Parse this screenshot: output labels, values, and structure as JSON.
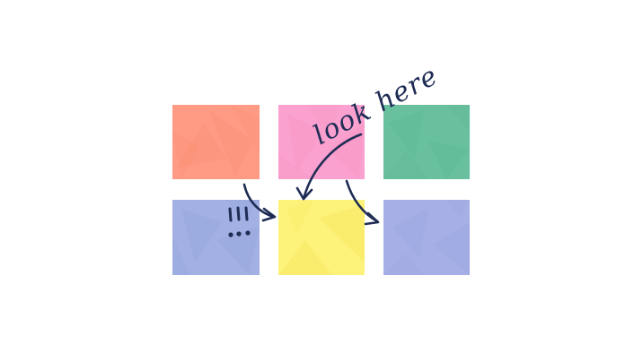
{
  "annotation": {
    "text": "look here",
    "ink_color": "#1f2d55"
  },
  "swatches": [
    {
      "name": "coral",
      "color_light": "#ff9a84",
      "color_dark": "#f98a6a"
    },
    {
      "name": "pink",
      "color_light": "#fba1cf",
      "color_dark": "#f58cbc"
    },
    {
      "name": "green",
      "color_light": "#69c09f",
      "color_dark": "#55b28f"
    },
    {
      "name": "blue",
      "color_light": "#a2b0e3",
      "color_dark": "#8f9fd8"
    },
    {
      "name": "yellow",
      "color_light": "#fdf27a",
      "color_dark": "#f5e14e"
    },
    {
      "name": "purple",
      "color_light": "#a6b0e6",
      "color_dark": "#939fde"
    }
  ]
}
